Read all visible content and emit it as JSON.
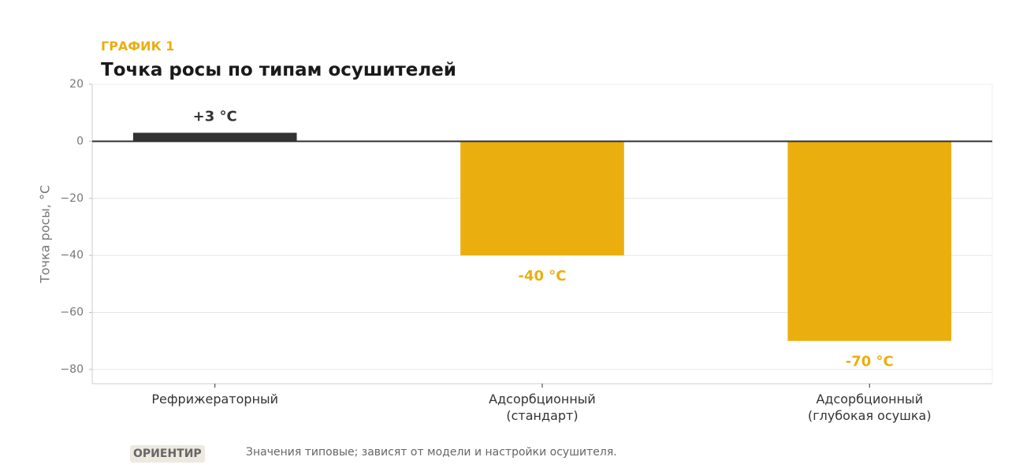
{
  "eyebrow": "ГРАФИК 1",
  "chart_data": {
    "type": "bar",
    "title": "Точка росы по типам осушителей",
    "y_label": "Точка росы, °C",
    "categories": [
      "Рефрижераторный",
      "Адсорбционный\n(стандарт)",
      "Адсорбционный\n(глубокая осушка)"
    ],
    "values": [
      3,
      -40,
      -70
    ],
    "value_labels": [
      "+3 °C",
      "-40 °C",
      "-70 °C"
    ],
    "colors": [
      "#333333",
      "#EAAF0F",
      "#EAAF0F"
    ],
    "ylim": [
      -85,
      20
    ],
    "yticks": [
      20,
      0,
      {
        "value": -20,
        "label": "−20"
      },
      {
        "value": -40,
        "label": "−40"
      },
      {
        "value": -60,
        "label": "−60"
      },
      {
        "value": -80,
        "label": "−80"
      }
    ],
    "grid": true
  },
  "note": {
    "badge": "ОРИЕНТИР",
    "text": "Значения типовые; зависят от модели и настройки осушителя."
  }
}
